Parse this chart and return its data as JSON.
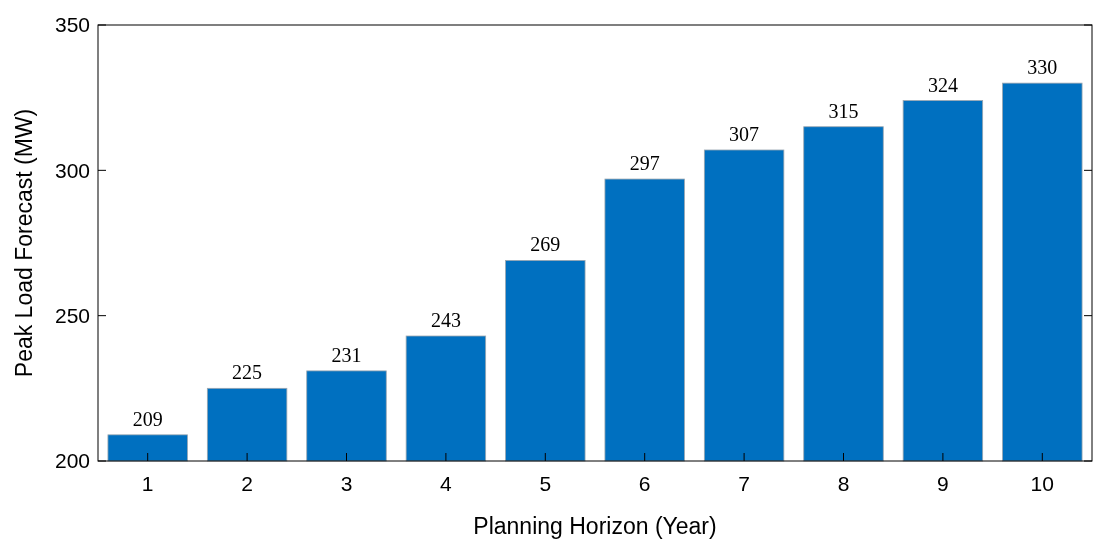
{
  "chart_data": {
    "type": "bar",
    "xlabel": "Planning Horizon (Year)",
    "ylabel": "Peak Load Forecast (MW)",
    "categories": [
      "1",
      "2",
      "3",
      "4",
      "5",
      "6",
      "7",
      "8",
      "9",
      "10"
    ],
    "values": [
      209,
      225,
      231,
      243,
      269,
      297,
      307,
      315,
      324,
      330
    ],
    "color": "#0070c0",
    "ylim": [
      200,
      350
    ],
    "yticks": [
      200,
      250,
      300,
      350
    ],
    "data_labels": true
  }
}
